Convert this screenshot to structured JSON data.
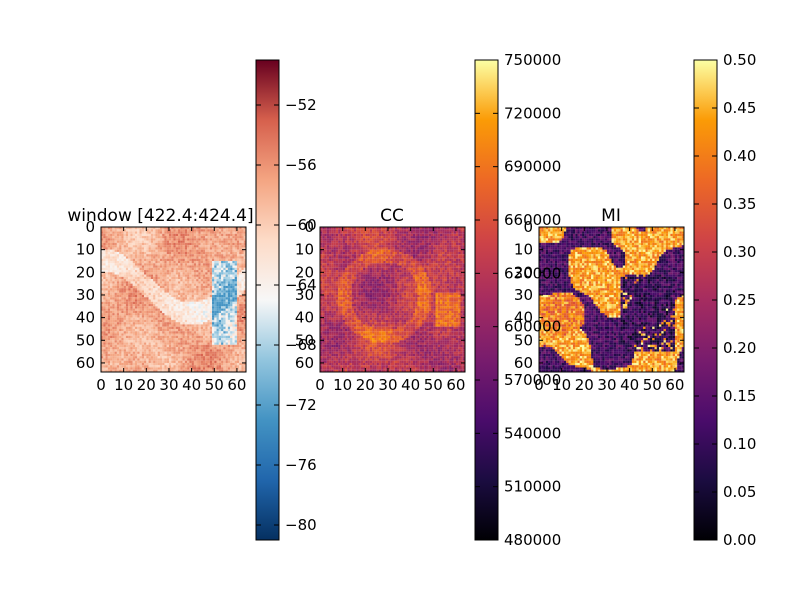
{
  "chart_data": [
    {
      "type": "heatmap",
      "title": "window [422.4:424.4] ns",
      "grid_size": 64,
      "xticks": [
        "0",
        "10",
        "20",
        "30",
        "40",
        "50",
        "60"
      ],
      "yticks": [
        "0",
        "10",
        "20",
        "30",
        "40",
        "50",
        "60"
      ],
      "colormap": "RdBu_r",
      "colorbar": {
        "ticks": [
          "-52",
          "-56",
          "-60",
          "-64",
          "-68",
          "-72",
          "-76",
          "-80"
        ],
        "range": [
          -81,
          -49
        ]
      },
      "value_range_observed": [
        -74,
        -50
      ]
    },
    {
      "type": "heatmap",
      "title": "CC",
      "grid_size": 64,
      "xticks": [
        "0",
        "10",
        "20",
        "30",
        "40",
        "50",
        "60"
      ],
      "yticks": [
        "0",
        "10",
        "20",
        "30",
        "40",
        "50",
        "60"
      ],
      "colormap": "inferno",
      "colorbar": {
        "ticks": [
          "750000",
          "720000",
          "690000",
          "660000",
          "630000",
          "600000",
          "570000",
          "540000",
          "510000",
          "480000"
        ],
        "range": [
          480000,
          750000
        ]
      },
      "value_range_observed": [
        560000,
        720000
      ]
    },
    {
      "type": "heatmap",
      "title": "MI",
      "grid_size": 64,
      "xticks": [
        "0",
        "10",
        "20",
        "30",
        "40",
        "50",
        "60"
      ],
      "yticks": [
        "0",
        "10",
        "20",
        "30",
        "40",
        "50",
        "60"
      ],
      "colormap": "inferno",
      "colorbar": {
        "ticks": [
          "0.50",
          "0.45",
          "0.40",
          "0.35",
          "0.30",
          "0.25",
          "0.20",
          "0.15",
          "0.10",
          "0.05",
          "0.00"
        ],
        "range": [
          0.0,
          0.5
        ]
      },
      "value_range_observed": [
        0.0,
        0.5
      ]
    }
  ]
}
